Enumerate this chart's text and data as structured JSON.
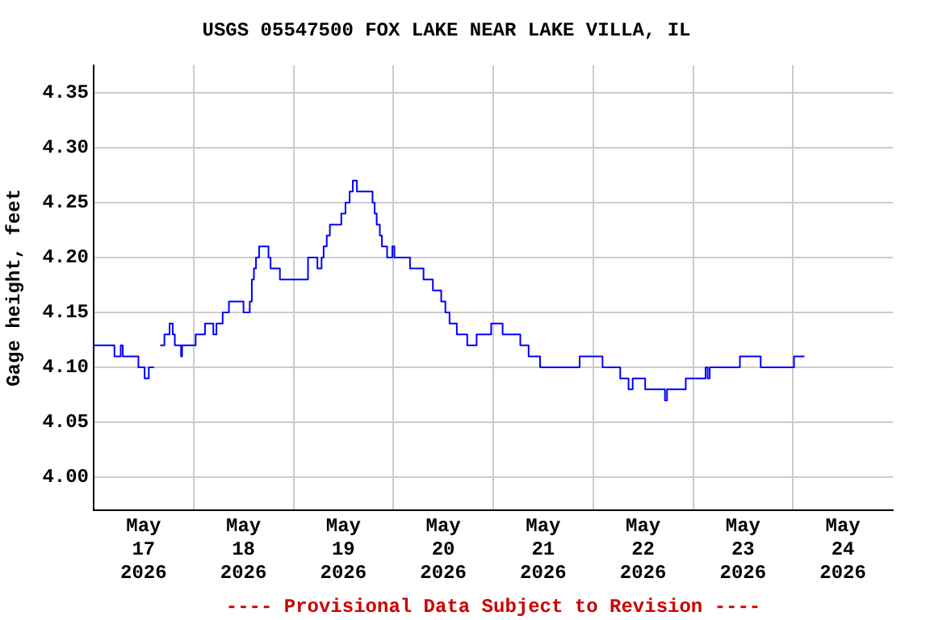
{
  "chart_data": {
    "type": "step",
    "title": "USGS 05547500 FOX LAKE NEAR LAKE VILLA, IL",
    "ylabel": "Gage height, feet",
    "annotations": [
      "---- Provisional Data Subject to Revision ----"
    ],
    "x": [
      "2026-05-17T00:00",
      "2026-05-17T05:00",
      "2026-05-17T06:30",
      "2026-05-17T07:00",
      "2026-05-17T10:45",
      "2026-05-17T12:15",
      "2026-05-17T13:15",
      "2026-05-17T14:30",
      "2026-05-17T15:00",
      "2026-05-17T16:00",
      "2026-05-17T17:00",
      "2026-05-17T18:15",
      "2026-05-17T19:00",
      "2026-05-17T19:30",
      "2026-05-17T21:00",
      "2026-05-17T21:15",
      "2026-05-18T00:30",
      "2026-05-18T02:45",
      "2026-05-18T04:45",
      "2026-05-18T05:30",
      "2026-05-18T07:00",
      "2026-05-18T08:30",
      "2026-05-18T12:00",
      "2026-05-18T13:30",
      "2026-05-18T14:00",
      "2026-05-18T14:30",
      "2026-05-18T15:00",
      "2026-05-18T15:45",
      "2026-05-18T18:00",
      "2026-05-18T18:30",
      "2026-05-18T20:45",
      "2026-05-19T03:30",
      "2026-05-19T05:45",
      "2026-05-19T06:45",
      "2026-05-19T07:15",
      "2026-05-19T08:00",
      "2026-05-19T08:45",
      "2026-05-19T11:30",
      "2026-05-19T12:30",
      "2026-05-19T13:30",
      "2026-05-19T14:15",
      "2026-05-19T15:15",
      "2026-05-19T19:00",
      "2026-05-19T19:30",
      "2026-05-19T20:00",
      "2026-05-19T20:45",
      "2026-05-19T21:15",
      "2026-05-19T22:30",
      "2026-05-19T23:45",
      "2026-05-20T00:15",
      "2026-05-20T04:00",
      "2026-05-20T07:15",
      "2026-05-20T09:30",
      "2026-05-20T11:30",
      "2026-05-20T12:30",
      "2026-05-20T13:30",
      "2026-05-20T15:15",
      "2026-05-20T17:45",
      "2026-05-20T20:00",
      "2026-05-20T23:30",
      "2026-05-21T02:15",
      "2026-05-21T06:30",
      "2026-05-21T08:30",
      "2026-05-21T11:15",
      "2026-05-21T20:45",
      "2026-05-22T02:15",
      "2026-05-22T06:30",
      "2026-05-22T08:30",
      "2026-05-22T09:30",
      "2026-05-22T12:30",
      "2026-05-22T17:15",
      "2026-05-22T17:45",
      "2026-05-22T22:15",
      "2026-05-23T03:00",
      "2026-05-23T03:30",
      "2026-05-23T04:00",
      "2026-05-23T11:15",
      "2026-05-23T16:15",
      "2026-05-24T00:15",
      "2026-05-24T02:45"
    ],
    "series": [
      {
        "color": "#0000ff",
        "values": [
          4.12,
          4.11,
          4.12,
          4.11,
          4.1,
          4.09,
          4.1,
          4.1,
          null,
          4.12,
          4.13,
          4.14,
          4.13,
          4.12,
          4.11,
          4.12,
          4.13,
          4.14,
          4.13,
          4.14,
          4.15,
          4.16,
          4.15,
          4.16,
          4.18,
          4.19,
          4.2,
          4.21,
          4.2,
          4.19,
          4.18,
          4.2,
          4.19,
          4.2,
          4.21,
          4.22,
          4.23,
          4.24,
          4.25,
          4.26,
          4.27,
          4.26,
          4.25,
          4.24,
          4.23,
          4.22,
          4.21,
          4.2,
          4.21,
          4.2,
          4.19,
          4.18,
          4.17,
          4.16,
          4.15,
          4.14,
          4.13,
          4.12,
          4.13,
          4.14,
          4.13,
          4.12,
          4.11,
          4.1,
          4.11,
          4.1,
          4.09,
          4.08,
          4.09,
          4.08,
          4.07,
          4.08,
          4.09,
          4.1,
          4.09,
          4.1,
          4.11,
          4.1,
          4.11,
          4.11
        ]
      }
    ],
    "xlim": [
      "2026-05-17T00:00",
      "2026-05-25T00:00"
    ],
    "xticks": [
      {
        "value": "2026-05-17T12:00",
        "label": "May 17 2026"
      },
      {
        "value": "2026-05-18T12:00",
        "label": "May 18 2026"
      },
      {
        "value": "2026-05-19T12:00",
        "label": "May 19 2026"
      },
      {
        "value": "2026-05-20T12:00",
        "label": "May 20 2026"
      },
      {
        "value": "2026-05-21T12:00",
        "label": "May 21 2026"
      },
      {
        "value": "2026-05-22T12:00",
        "label": "May 22 2026"
      },
      {
        "value": "2026-05-23T12:00",
        "label": "May 23 2026"
      },
      {
        "value": "2026-05-24T12:00",
        "label": "May 24 2026"
      },
      {
        "value": "2026-05-18",
        "label": null
      },
      {
        "value": "2026-05-19",
        "label": null
      },
      {
        "value": "2026-05-20",
        "label": null
      },
      {
        "value": "2026-05-21",
        "label": null
      },
      {
        "value": "2026-05-22",
        "label": null
      },
      {
        "value": "2026-05-23",
        "label": null
      },
      {
        "value": "2026-05-24",
        "label": null
      }
    ],
    "ylim": [
      3.97,
      4.375
    ],
    "yticks": [
      {
        "value": 4.0,
        "label": "4.00"
      },
      4.05,
      {
        "value": 4.1,
        "label": "4.10"
      },
      4.15,
      {
        "value": 4.2,
        "label": "4.20"
      },
      4.25,
      {
        "value": 4.3,
        "label": "4.30"
      },
      4.35
    ],
    "grid": true,
    "legend": false,
    "marker": "none",
    "line_style": "solid"
  }
}
